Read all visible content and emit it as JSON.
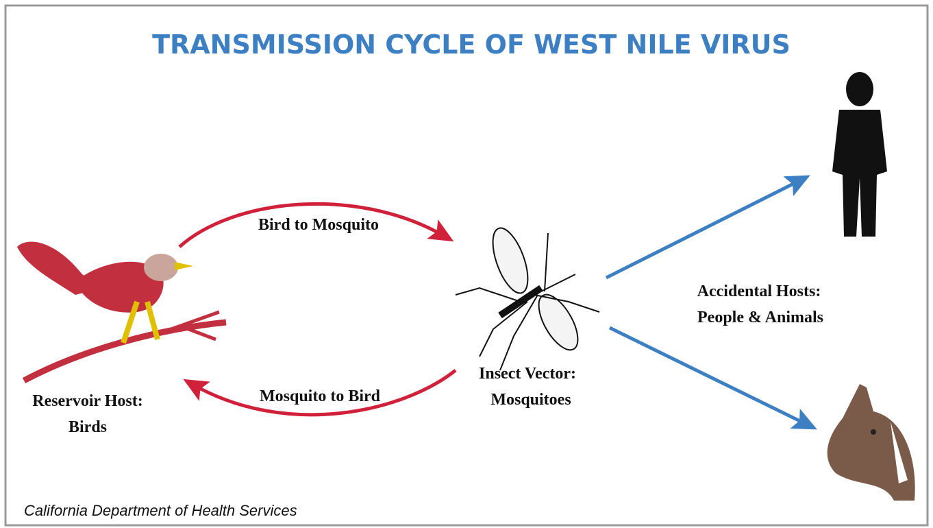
{
  "title": "TRANSMISSION CYCLE OF WEST NILE VIRUS",
  "nodes": [
    {
      "lines": [
        "Reservoir Host:",
        "Birds"
      ]
    },
    {
      "lines": [
        "Insect Vector:",
        "Mosquitoes"
      ]
    },
    {
      "lines": [
        "Accidental Hosts:",
        "People & Animals"
      ]
    }
  ],
  "edges": [
    {
      "label": "Bird to Mosquito"
    },
    {
      "label": "Mosquito to Bird"
    }
  ],
  "footer": "California Department of Health Services"
}
